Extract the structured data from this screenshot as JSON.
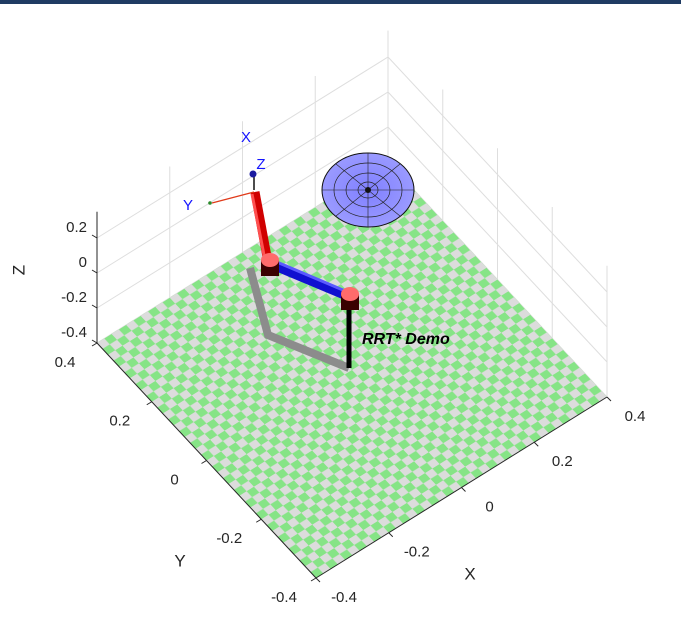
{
  "chart_data": {
    "type": "scene3d",
    "xlabel": "X",
    "ylabel": "Y",
    "zlabel": "Z",
    "xlim": [
      -0.4,
      0.4
    ],
    "ylim": [
      -0.4,
      0.4
    ],
    "zlim": [
      -0.4,
      0.35
    ],
    "xticks": [
      -0.4,
      -0.2,
      0,
      0.2,
      0.4
    ],
    "yticks": [
      -0.4,
      -0.2,
      0,
      0.2,
      0.4
    ],
    "zticks": [
      -0.4,
      -0.2,
      0,
      0.2
    ],
    "grid": true,
    "annotation": "RRT* Demo",
    "triad_labels": [
      "X",
      "Y",
      "Z"
    ]
  }
}
